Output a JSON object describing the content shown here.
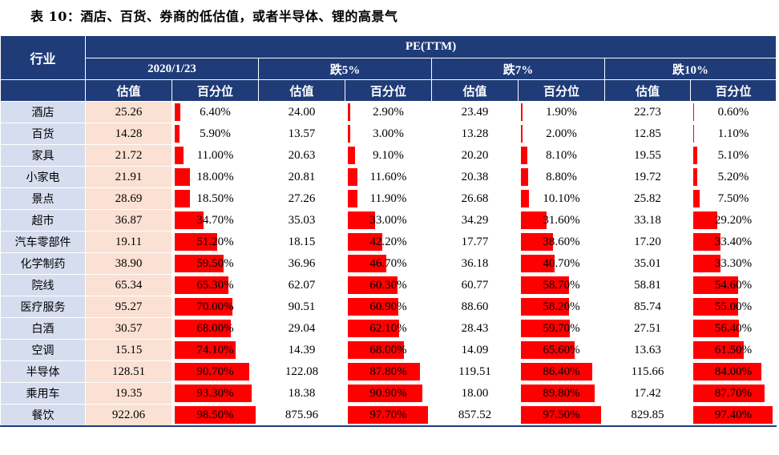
{
  "title": "表 10：酒店、百货、券商的低估值，或者半导体、锂的高景气",
  "header": {
    "industry": "行业",
    "pe_label": "PE(TTM)",
    "groups": [
      "2020/1/23",
      "跌5%",
      "跌7%",
      "跌10%"
    ],
    "sub_value": "估值",
    "sub_pct": "百分位"
  },
  "colors": {
    "header_bg": "#1f3b78",
    "bar": "#ff0000",
    "first_value_bg": "#fbe1d3",
    "industry_bg": "#d6ddef"
  },
  "rows": [
    {
      "name": "酒店",
      "v": [
        "25.26",
        "24.00",
        "23.49",
        "22.73"
      ],
      "p": [
        "6.40%",
        "2.90%",
        "1.90%",
        "0.60%"
      ],
      "f": [
        6.4,
        2.9,
        1.9,
        0.6
      ]
    },
    {
      "name": "百货",
      "v": [
        "14.28",
        "13.57",
        "13.28",
        "12.85"
      ],
      "p": [
        "5.90%",
        "3.00%",
        "2.00%",
        "1.10%"
      ],
      "f": [
        5.9,
        3.0,
        2.0,
        1.1
      ]
    },
    {
      "name": "家具",
      "v": [
        "21.72",
        "20.63",
        "20.20",
        "19.55"
      ],
      "p": [
        "11.00%",
        "9.10%",
        "8.10%",
        "5.10%"
      ],
      "f": [
        11.0,
        9.1,
        8.1,
        5.1
      ]
    },
    {
      "name": "小家电",
      "v": [
        "21.91",
        "20.81",
        "20.38",
        "19.72"
      ],
      "p": [
        "18.00%",
        "11.60%",
        "8.80%",
        "5.20%"
      ],
      "f": [
        18.0,
        11.6,
        8.8,
        5.2
      ]
    },
    {
      "name": "景点",
      "v": [
        "28.69",
        "27.26",
        "26.68",
        "25.82"
      ],
      "p": [
        "18.50%",
        "11.90%",
        "10.10%",
        "7.50%"
      ],
      "f": [
        18.5,
        11.9,
        10.1,
        7.5
      ]
    },
    {
      "name": "超市",
      "v": [
        "36.87",
        "35.03",
        "34.29",
        "33.18"
      ],
      "p": [
        "34.70%",
        "33.00%",
        "31.60%",
        "29.20%"
      ],
      "f": [
        34.7,
        33.0,
        31.6,
        29.2
      ]
    },
    {
      "name": "汽车零部件",
      "v": [
        "19.11",
        "18.15",
        "17.77",
        "17.20"
      ],
      "p": [
        "51.20%",
        "42.20%",
        "38.60%",
        "33.40%"
      ],
      "f": [
        51.2,
        42.2,
        38.6,
        33.4
      ]
    },
    {
      "name": "化学制药",
      "v": [
        "38.90",
        "36.96",
        "36.18",
        "35.01"
      ],
      "p": [
        "59.50%",
        "46.70%",
        "40.70%",
        "33.30%"
      ],
      "f": [
        59.5,
        46.7,
        40.7,
        33.3
      ]
    },
    {
      "name": "院线",
      "v": [
        "65.34",
        "62.07",
        "60.77",
        "58.81"
      ],
      "p": [
        "65.30%",
        "60.30%",
        "58.70%",
        "54.60%"
      ],
      "f": [
        65.3,
        60.3,
        58.7,
        54.6
      ]
    },
    {
      "name": "医疗服务",
      "v": [
        "95.27",
        "90.51",
        "88.60",
        "85.74"
      ],
      "p": [
        "70.00%",
        "60.90%",
        "58.20%",
        "55.00%"
      ],
      "f": [
        70.0,
        60.9,
        58.2,
        55.0
      ]
    },
    {
      "name": "白酒",
      "v": [
        "30.57",
        "29.04",
        "28.43",
        "27.51"
      ],
      "p": [
        "68.00%",
        "62.10%",
        "59.70%",
        "56.40%"
      ],
      "f": [
        68.0,
        62.1,
        59.7,
        56.4
      ]
    },
    {
      "name": "空调",
      "v": [
        "15.15",
        "14.39",
        "14.09",
        "13.63"
      ],
      "p": [
        "74.10%",
        "68.00%",
        "65.60%",
        "61.50%"
      ],
      "f": [
        74.1,
        68.0,
        65.6,
        61.5
      ]
    },
    {
      "name": "半导体",
      "v": [
        "128.51",
        "122.08",
        "119.51",
        "115.66"
      ],
      "p": [
        "90.70%",
        "87.80%",
        "86.40%",
        "84.00%"
      ],
      "f": [
        90.7,
        87.8,
        86.4,
        84.0
      ]
    },
    {
      "name": "乘用车",
      "v": [
        "19.35",
        "18.38",
        "18.00",
        "17.42"
      ],
      "p": [
        "93.30%",
        "90.90%",
        "89.80%",
        "87.70%"
      ],
      "f": [
        93.3,
        90.9,
        89.8,
        87.7
      ]
    },
    {
      "name": "餐饮",
      "v": [
        "922.06",
        "875.96",
        "857.52",
        "829.85"
      ],
      "p": [
        "98.50%",
        "97.70%",
        "97.50%",
        "97.40%"
      ],
      "f": [
        98.5,
        97.7,
        97.5,
        97.4
      ]
    }
  ]
}
